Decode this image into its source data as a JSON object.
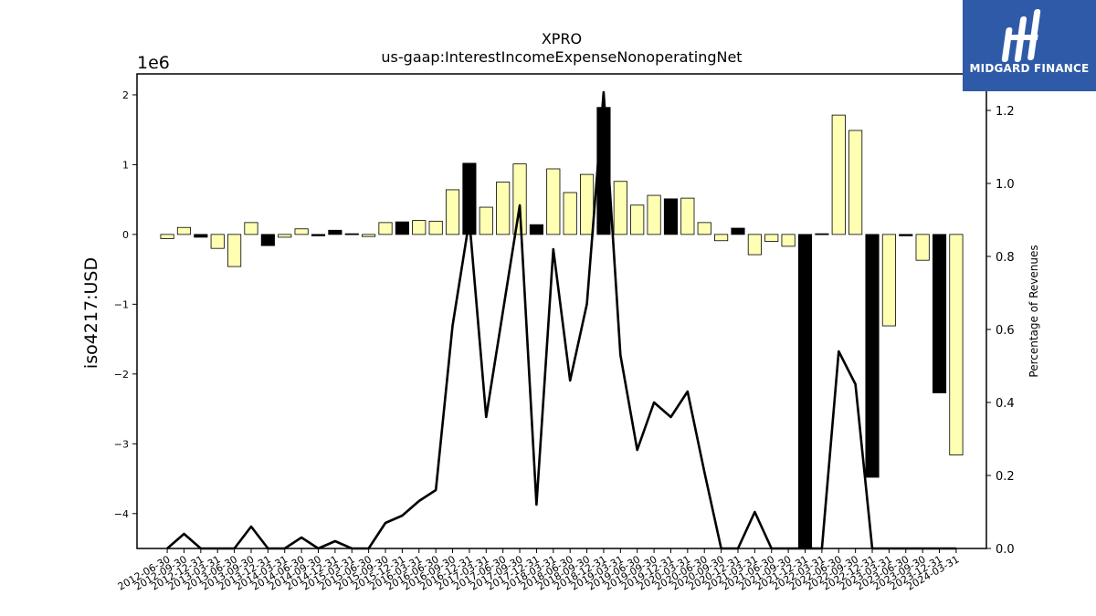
{
  "chart_data": {
    "type": "bar",
    "title": "XPRO",
    "subtitle": "us-gaap:InterestIncomeExpenseNonoperatingNet",
    "ylabel": "iso4217:USD",
    "y2label": "Percentage of Revenues",
    "offset_label": "1e6",
    "ylim": [
      -4.5,
      2.3
    ],
    "y2lim": [
      0,
      1.3
    ],
    "yticks": [
      -4,
      -3,
      -2,
      -1,
      0,
      1,
      2
    ],
    "y2ticks": [
      0.0,
      0.2,
      0.4,
      0.6,
      0.8,
      1.0,
      1.2
    ],
    "categories": [
      "2012-06-30",
      "2012-09-30",
      "2012-12-31",
      "2013-03-31",
      "2013-06-30",
      "2013-09-30",
      "2013-12-31",
      "2014-03-31",
      "2014-06-30",
      "2014-09-30",
      "2014-12-31",
      "2015-03-31",
      "2015-06-30",
      "2015-09-30",
      "2015-12-31",
      "2016-03-31",
      "2016-06-30",
      "2016-09-30",
      "2016-12-31",
      "2017-03-31",
      "2017-06-30",
      "2017-09-30",
      "2017-12-31",
      "2018-03-31",
      "2018-06-30",
      "2018-09-30",
      "2018-12-31",
      "2019-03-31",
      "2019-06-30",
      "2019-09-30",
      "2019-12-31",
      "2020-03-31",
      "2020-06-30",
      "2020-09-30",
      "2020-12-31",
      "2021-03-31",
      "2021-06-30",
      "2021-09-30",
      "2021-12-31",
      "2022-03-31",
      "2022-06-30",
      "2022-09-30",
      "2022-12-31",
      "2023-03-31",
      "2023-06-30",
      "2023-09-30",
      "2023-12-31",
      "2024-03-31"
    ],
    "tick_labels": [
      "2012-06-30",
      "2012-09-30",
      "2012-12-31",
      "2013-03-31",
      "2013-06-30",
      "2013-09-30",
      "2013-12-31",
      "2014-03-31",
      "2014-06-30",
      "2014-09-30",
      "2014-12-31",
      "2015-03-31",
      "2015-06-30",
      "2015-09-30",
      "2015-12-31",
      "2016-03-31",
      "2016-06-30",
      "2016-09-30",
      "2016-12-31",
      "2017-03-31",
      "2017-06-30",
      "2017-09-30",
      "2017-12-31",
      "2018-03-31",
      "2018-06-30",
      "2018-09-30",
      "2018-12-31",
      "2019-03-31",
      "2019-06-30",
      "2019-09-30",
      "2019-12-31",
      "2020-03-31",
      "2020-06-30",
      "2020-09-30",
      "2020-12-31",
      "2021-03-31",
      "2021-06-30",
      "2021-09-30",
      "2021-12-31",
      "2022-03-31",
      "2022-06-30",
      "2022-09-30",
      "2022-12-31",
      "2023-03-31",
      "2023-06-30",
      "2023-09-30",
      "2023-12-31",
      "2024-03-31"
    ],
    "series": [
      {
        "type": "bar",
        "axis": "left",
        "values": [
          -0.06,
          0.1,
          -0.04,
          -0.2,
          -0.46,
          0.17,
          -0.16,
          -0.04,
          0.08,
          -0.02,
          0.06,
          0.01,
          -0.03,
          0.17,
          0.18,
          0.2,
          0.19,
          0.64,
          1.02,
          0.39,
          0.75,
          1.01,
          0.14,
          0.94,
          0.6,
          0.86,
          1.82,
          0.76,
          0.42,
          0.56,
          0.51,
          0.52,
          0.17,
          -0.09,
          0.09,
          -0.29,
          -0.1,
          -0.17,
          -4.5,
          0.01,
          1.71,
          1.49,
          -3.48,
          -1.31,
          -0.02,
          -0.37,
          -2.27,
          -3.16
        ],
        "highlight": [
          false,
          false,
          true,
          false,
          false,
          false,
          true,
          false,
          false,
          true,
          true,
          true,
          false,
          false,
          true,
          false,
          false,
          false,
          true,
          false,
          false,
          false,
          true,
          false,
          false,
          false,
          true,
          false,
          false,
          false,
          true,
          false,
          false,
          false,
          true,
          false,
          false,
          false,
          true,
          true,
          false,
          false,
          true,
          false,
          true,
          false,
          true,
          false
        ]
      },
      {
        "type": "line",
        "axis": "right",
        "values": [
          0.0,
          0.04,
          0.0,
          0.0,
          0.0,
          0.06,
          0.0,
          0.0,
          0.03,
          0.0,
          0.02,
          0.0,
          0.0,
          0.07,
          0.09,
          0.13,
          0.16,
          0.61,
          0.9,
          0.36,
          0.65,
          0.94,
          0.12,
          0.82,
          0.46,
          0.67,
          1.25,
          0.53,
          0.27,
          0.4,
          0.36,
          0.43,
          0.21,
          0.0,
          0.0,
          0.1,
          0.0,
          0.0,
          0.0,
          0.0,
          0.54,
          0.45,
          0.0,
          0.0,
          0.0,
          0.0,
          0.0,
          0.0
        ]
      }
    ],
    "colors": {
      "bar": "#ffffb3",
      "bar_highlight": "#000000",
      "line": "#000000",
      "edge": "#000000"
    },
    "grid": false
  },
  "logo": {
    "text": "MIDGARD FINANCE",
    "icon": "midgard-logo-icon",
    "color": "#2f5aa8"
  }
}
